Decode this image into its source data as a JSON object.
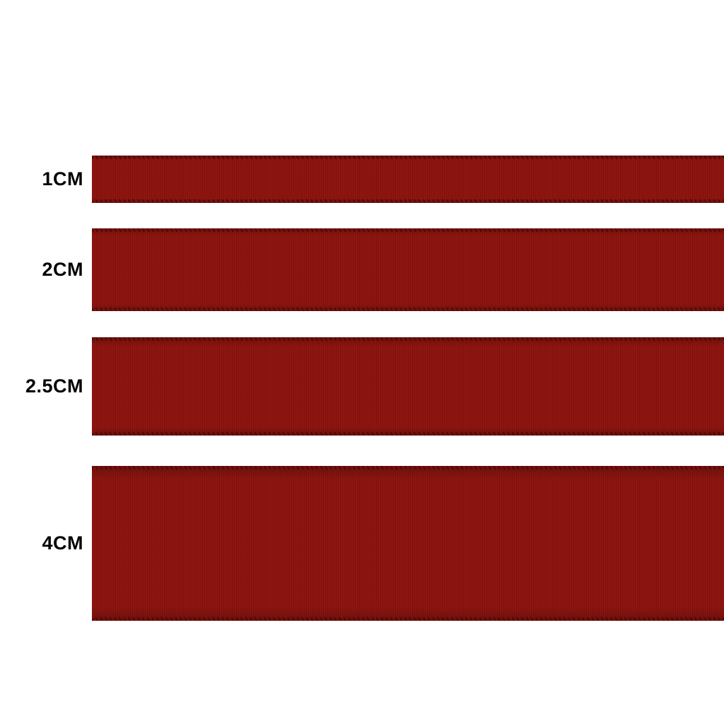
{
  "colors": {
    "ribbon": "#8B120D",
    "ribbon_edge": "#4E0703",
    "label_text": "#000000",
    "background": "#FFFFFF"
  },
  "ribbons": [
    {
      "label": "1CM",
      "width_cm": 1
    },
    {
      "label": "2CM",
      "width_cm": 2
    },
    {
      "label": "2.5CM",
      "width_cm": 2.5
    },
    {
      "label": "4CM",
      "width_cm": 4
    }
  ]
}
